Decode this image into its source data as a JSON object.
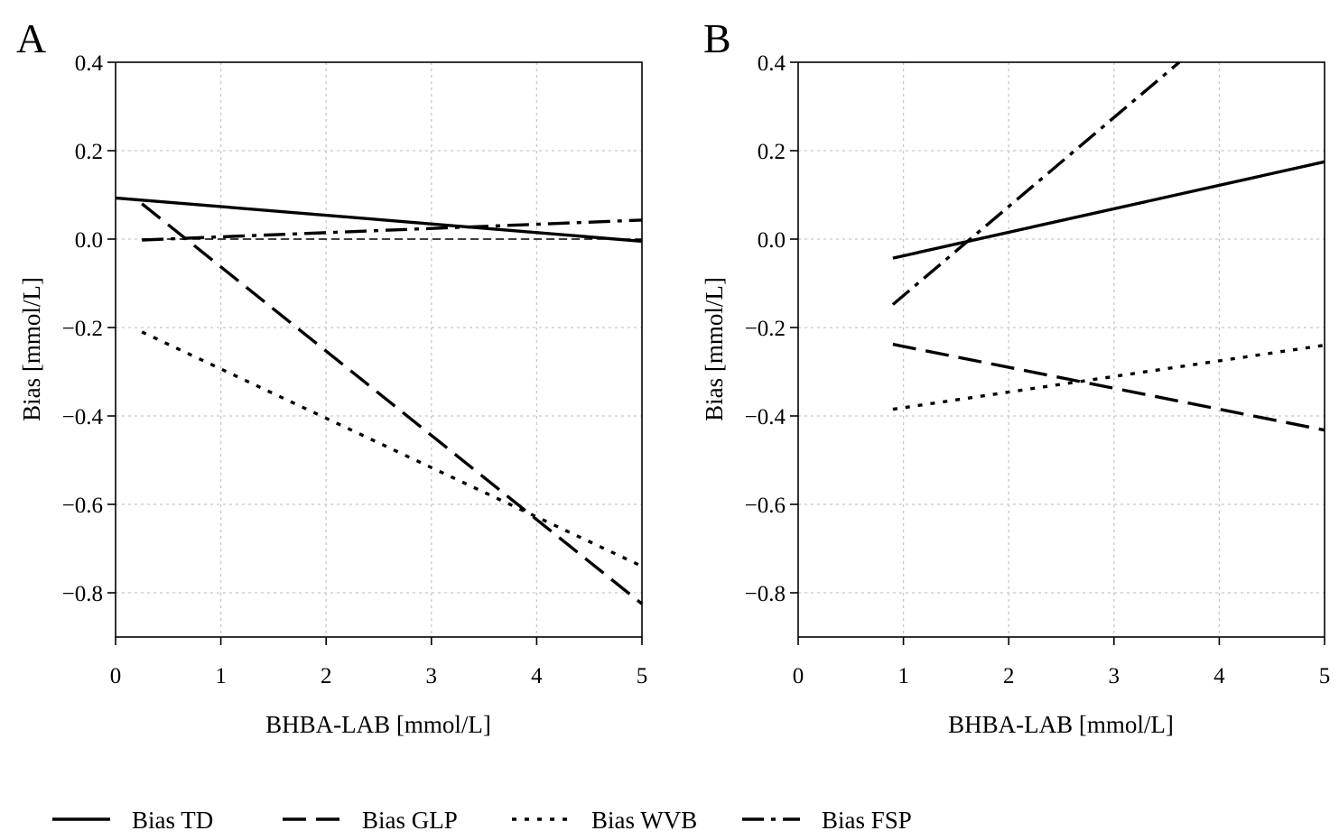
{
  "legend": {
    "position": "bottom",
    "items": [
      {
        "label": "Bias TD",
        "style": "solid"
      },
      {
        "label": "Bias GLP",
        "style": "dashed"
      },
      {
        "label": "Bias WVB",
        "style": "dotted"
      },
      {
        "label": "Bias FSP",
        "style": "dashdot"
      }
    ]
  },
  "chart_data": [
    {
      "panel": "A",
      "type": "line",
      "xlabel": "BHBA-LAB [mmol/L]",
      "ylabel": "Bias [mmol/L]",
      "xlim": [
        0,
        5
      ],
      "ylim": [
        -0.9,
        0.4
      ],
      "xticks": [
        0,
        1,
        2,
        3,
        4,
        5
      ],
      "yticks": [
        0.4,
        0.2,
        0.0,
        -0.2,
        -0.4,
        -0.6,
        -0.8
      ],
      "ytick_labels": [
        "0.4",
        "0.2",
        "0.0",
        "−0.2",
        "−0.4",
        "−0.6",
        "−0.8"
      ],
      "grid": true,
      "reference_line": 0,
      "series": [
        {
          "name": "Bias TD",
          "style": "solid",
          "x": [
            0,
            5
          ],
          "y": [
            0.093,
            -0.005
          ]
        },
        {
          "name": "Bias GLP",
          "style": "dashed",
          "x": [
            0.25,
            5
          ],
          "y": [
            0.08,
            -0.825
          ]
        },
        {
          "name": "Bias WVB",
          "style": "dotted",
          "x": [
            0.25,
            5
          ],
          "y": [
            -0.21,
            -0.74
          ]
        },
        {
          "name": "Bias FSP",
          "style": "dashdot",
          "x": [
            0.25,
            5
          ],
          "y": [
            -0.002,
            0.043
          ]
        }
      ]
    },
    {
      "panel": "B",
      "type": "line",
      "xlabel": "BHBA-LAB [mmol/L]",
      "ylabel": "Bias [mmol/L]",
      "xlim": [
        0,
        5
      ],
      "ylim": [
        -0.9,
        0.4
      ],
      "xticks": [
        0,
        1,
        2,
        3,
        4,
        5
      ],
      "yticks": [
        0.4,
        0.2,
        0.0,
        -0.2,
        -0.4,
        -0.6,
        -0.8
      ],
      "ytick_labels": [
        "0.4",
        "0.2",
        "0.0",
        "−0.2",
        "−0.4",
        "−0.6",
        "−0.8"
      ],
      "grid": true,
      "reference_line": null,
      "series": [
        {
          "name": "Bias TD",
          "style": "solid",
          "x": [
            0.9,
            5
          ],
          "y": [
            -0.043,
            0.175
          ]
        },
        {
          "name": "Bias GLP",
          "style": "dashed",
          "x": [
            0.9,
            5
          ],
          "y": [
            -0.238,
            -0.432
          ]
        },
        {
          "name": "Bias WVB",
          "style": "dotted",
          "x": [
            0.9,
            5
          ],
          "y": [
            -0.385,
            -0.24
          ]
        },
        {
          "name": "Bias FSP",
          "style": "dashdot",
          "x": [
            0.9,
            3.62
          ],
          "y": [
            -0.148,
            0.4
          ]
        }
      ]
    }
  ]
}
